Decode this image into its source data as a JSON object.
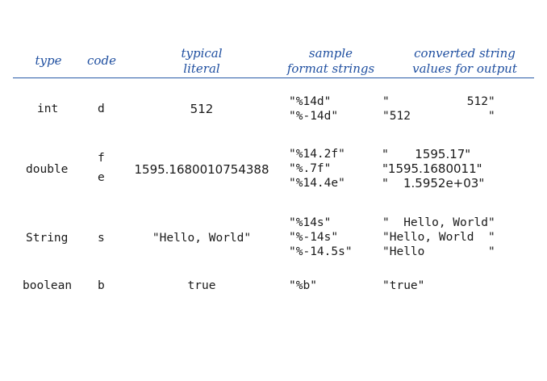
{
  "headers": {
    "type": "type",
    "code": "code",
    "literal": [
      "typical",
      "literal"
    ],
    "format": [
      "sample",
      "format strings"
    ],
    "output": [
      "converted string",
      "values for output"
    ]
  },
  "rows": [
    {
      "type": "int",
      "codes": [
        "d"
      ],
      "literal": "512",
      "formats": [
        "\"%14d\"",
        "\"%-14d\""
      ],
      "outputs": [
        "\"           512\"",
        "\"512           \""
      ]
    },
    {
      "type": "double",
      "codes": [
        "f",
        "e"
      ],
      "literal": "1595.1680010754388",
      "formats": [
        "\"%14.2f\"",
        "\"%.7f\"",
        "\"%14.4e\""
      ],
      "outputs": [
        "\"       1595.17\"",
        "\"1595.1680011\"",
        "\"    1.5952e+03\""
      ]
    },
    {
      "type": "String",
      "codes": [
        "s"
      ],
      "literal": "\"Hello, World\"",
      "formats": [
        "\"%14s\"",
        "\"%-14s\"",
        "\"%-14.5s\""
      ],
      "outputs": [
        "\"  Hello, World\"",
        "\"Hello, World  \"",
        "\"Hello         \""
      ]
    },
    {
      "type": "boolean",
      "codes": [
        "b"
      ],
      "literal": "true",
      "formats": [
        "\"%b\""
      ],
      "outputs": [
        "\"true\""
      ]
    }
  ]
}
